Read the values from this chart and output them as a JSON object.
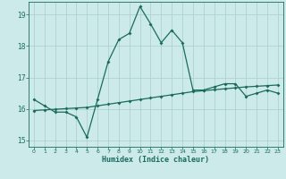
{
  "xlabel": "Humidex (Indice chaleur)",
  "bg_color": "#cceaea",
  "grid_color": "#b0d8d8",
  "line_color": "#1a6b5e",
  "xlim": [
    -0.5,
    23.5
  ],
  "ylim": [
    14.8,
    19.4
  ],
  "yticks": [
    15,
    16,
    17,
    18,
    19
  ],
  "xticks": [
    0,
    1,
    2,
    3,
    4,
    5,
    6,
    7,
    8,
    9,
    10,
    11,
    12,
    13,
    14,
    15,
    16,
    17,
    18,
    19,
    20,
    21,
    22,
    23
  ],
  "series1_x": [
    0,
    1,
    2,
    3,
    4,
    5,
    6,
    7,
    8,
    9,
    10,
    11,
    12,
    13,
    14,
    15,
    16,
    17,
    18,
    19,
    20,
    21,
    22,
    23
  ],
  "series1_y": [
    16.3,
    16.1,
    15.9,
    15.9,
    15.75,
    15.1,
    16.3,
    17.5,
    18.2,
    18.4,
    19.25,
    18.7,
    18.1,
    18.5,
    18.1,
    16.6,
    16.6,
    16.7,
    16.8,
    16.8,
    16.4,
    16.5,
    16.6,
    16.5
  ],
  "series2_x": [
    0,
    1,
    2,
    3,
    4,
    5,
    6,
    7,
    8,
    9,
    10,
    11,
    12,
    13,
    14,
    15,
    16,
    17,
    18,
    19,
    20,
    21,
    22,
    23
  ],
  "series2_y": [
    15.95,
    15.97,
    15.99,
    16.01,
    16.03,
    16.05,
    16.1,
    16.15,
    16.2,
    16.25,
    16.3,
    16.35,
    16.4,
    16.45,
    16.5,
    16.55,
    16.58,
    16.61,
    16.64,
    16.67,
    16.7,
    16.72,
    16.74,
    16.76
  ]
}
